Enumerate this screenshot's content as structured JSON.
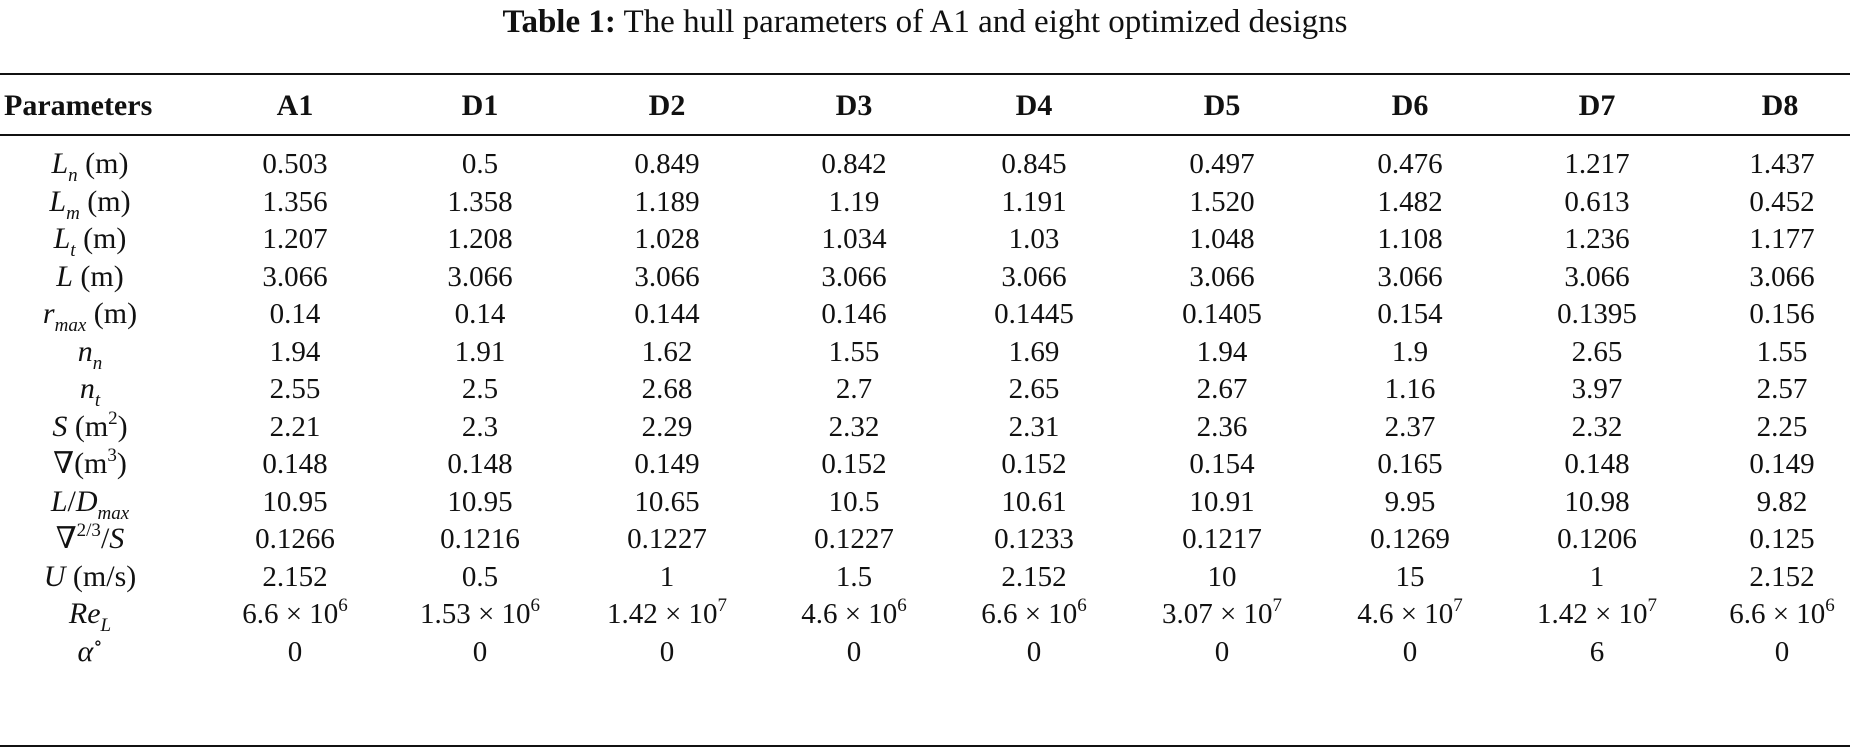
{
  "table": {
    "caption_label": "Table 1:",
    "caption_text": "The hull parameters of A1 and eight optimized designs",
    "columns": [
      "Parameters",
      "A1",
      "D1",
      "D2",
      "D3",
      "D4",
      "D5",
      "D6",
      "D7",
      "D8"
    ],
    "rows": [
      {
        "param": {
          "sym": "L",
          "sub": "n",
          "unit": " (m)"
        },
        "values": [
          "0.503",
          "0.5",
          "0.849",
          "0.842",
          "0.845",
          "0.497",
          "0.476",
          "1.217",
          "1.437"
        ]
      },
      {
        "param": {
          "sym": "L",
          "sub": "m",
          "unit": " (m)"
        },
        "values": [
          "1.356",
          "1.358",
          "1.189",
          "1.19",
          "1.191",
          "1.520",
          "1.482",
          "0.613",
          "0.452"
        ]
      },
      {
        "param": {
          "sym": "L",
          "sub": "t",
          "unit": " (m)"
        },
        "values": [
          "1.207",
          "1.208",
          "1.028",
          "1.034",
          "1.03",
          "1.048",
          "1.108",
          "1.236",
          "1.177"
        ]
      },
      {
        "param": {
          "sym": "L",
          "unit": " (m)"
        },
        "values": [
          "3.066",
          "3.066",
          "3.066",
          "3.066",
          "3.066",
          "3.066",
          "3.066",
          "3.066",
          "3.066"
        ]
      },
      {
        "param": {
          "sym": "r",
          "sub": "max",
          "unit": " (m)"
        },
        "values": [
          "0.14",
          "0.14",
          "0.144",
          "0.146",
          "0.1445",
          "0.1405",
          "0.154",
          "0.1395",
          "0.156"
        ]
      },
      {
        "param": {
          "sym": "n",
          "sub": "n"
        },
        "values": [
          "1.94",
          "1.91",
          "1.62",
          "1.55",
          "1.69",
          "1.94",
          "1.9",
          "2.65",
          "1.55"
        ]
      },
      {
        "param": {
          "sym": "n",
          "sub": "t"
        },
        "values": [
          "2.55",
          "2.5",
          "2.68",
          "2.7",
          "2.65",
          "2.67",
          "1.16",
          "3.97",
          "2.57"
        ]
      },
      {
        "param": {
          "sym": "S",
          "unit": " (m",
          "unit_sup": "2",
          "unit_close": ")"
        },
        "values": [
          "2.21",
          "2.3",
          "2.29",
          "2.32",
          "2.31",
          "2.36",
          "2.37",
          "2.32",
          "2.25"
        ]
      },
      {
        "param": {
          "pre": "∇",
          "unit": "(m",
          "unit_sup": "3",
          "unit_close": ")"
        },
        "values": [
          "0.148",
          "0.148",
          "0.149",
          "0.152",
          "0.152",
          "0.154",
          "0.165",
          "0.148",
          "0.149"
        ]
      },
      {
        "param": {
          "sym": "L",
          "mid": "/",
          "sym2": "D",
          "sub2": "max"
        },
        "values": [
          "10.95",
          "10.95",
          "10.65",
          "10.5",
          "10.61",
          "10.91",
          "9.95",
          "10.98",
          "9.82"
        ]
      },
      {
        "param": {
          "pre": "∇",
          "pre_sup": "2/3",
          "mid": "/",
          "sym2": "S"
        },
        "values": [
          "0.1266",
          "0.1216",
          "0.1227",
          "0.1227",
          "0.1233",
          "0.1217",
          "0.1269",
          "0.1206",
          "0.125"
        ]
      },
      {
        "param": {
          "sym": "U",
          "unit": " (m/s)"
        },
        "values": [
          "2.152",
          "0.5",
          "1",
          "1.5",
          "2.152",
          "10",
          "15",
          "1",
          "2.152"
        ]
      },
      {
        "param": {
          "sym": "Re",
          "sub": "L"
        },
        "values": [
          "6.6 × 10",
          "1.53 × 10",
          "1.42 × 10",
          "4.6 × 10",
          "6.6 × 10",
          "3.07 × 10",
          "4.6 × 10",
          "1.42 × 10",
          "6.6 × 10"
        ],
        "exponents": [
          "6",
          "6",
          "7",
          "6",
          "6",
          "7",
          "7",
          "7",
          "6"
        ]
      },
      {
        "param": {
          "sym": "α",
          "sym_sup": "∘"
        },
        "values": [
          "0",
          "0",
          "0",
          "0",
          "0",
          "0",
          "0",
          "6",
          "0"
        ]
      }
    ]
  }
}
